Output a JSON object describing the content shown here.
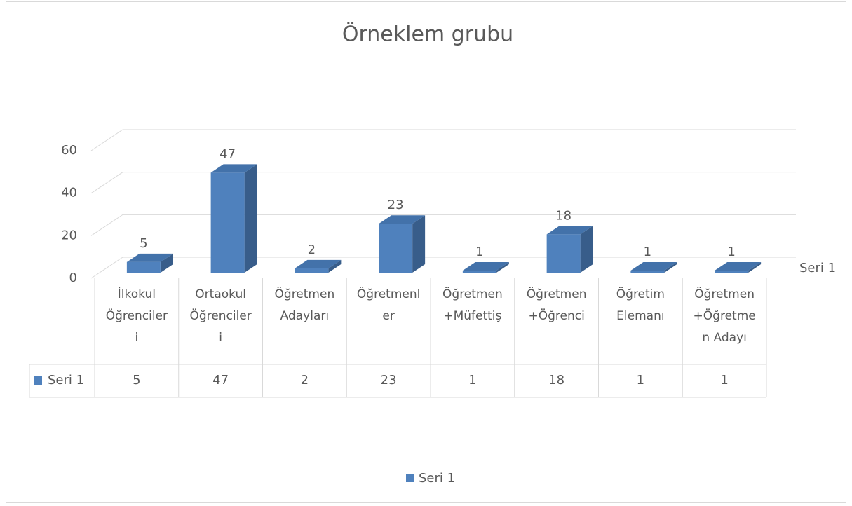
{
  "chart_data": {
    "type": "bar3d",
    "title": "Örneklem grubu",
    "categories": [
      "İlkokul Öğrencileri",
      "Ortaokul Öğrencileri",
      "Öğretmen Adayları",
      "Öğretmenler",
      "Öğretmen+Müfettiş",
      "Öğretmen+Öğrenci",
      "Öğretim Elemanı",
      "Öğretmen+Öğretmen Adayı"
    ],
    "series": [
      {
        "name": "Seri 1",
        "color": "#4f81bd",
        "values": [
          5,
          47,
          2,
          23,
          1,
          18,
          1,
          1
        ]
      }
    ],
    "ylim": [
      0,
      60
    ],
    "yticks": [
      0,
      20,
      40,
      60
    ],
    "grid": true,
    "data_labels": true,
    "data_table": true,
    "legend": "bottom"
  }
}
